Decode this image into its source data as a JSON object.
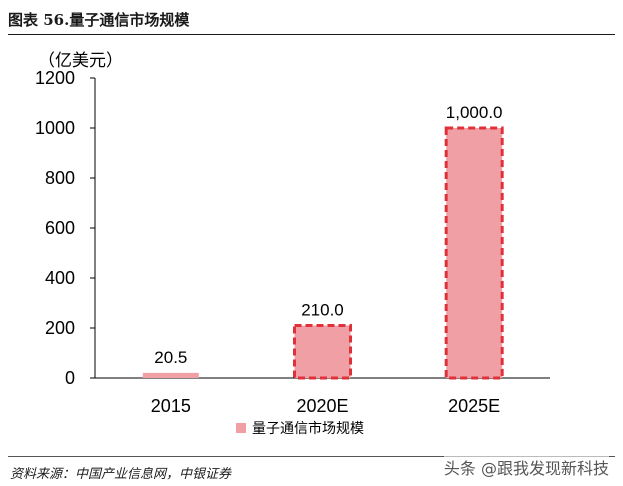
{
  "header": {
    "title": "图表 56.量子通信市场规模"
  },
  "chart_data": {
    "type": "bar",
    "title": "",
    "unit_label": "（亿美元）",
    "categories": [
      "2015",
      "2020E",
      "2025E"
    ],
    "series": [
      {
        "name": "量子通信市场规模",
        "values": [
          20.5,
          210.0,
          1000.0
        ],
        "data_labels": [
          "20.5",
          "210.0",
          "1,000.0"
        ]
      }
    ],
    "ylim": [
      0,
      1200
    ],
    "yticks": [
      0,
      200,
      400,
      600,
      800,
      1000,
      1200
    ],
    "grid": false,
    "legend": "bottom",
    "colors": {
      "bar_fill": "#f0a0a5",
      "bar_dashed_border": "#e0313b",
      "axis": "#000000"
    },
    "bar_styles": [
      "plain",
      "dashed-border",
      "dashed-border"
    ]
  },
  "footer": {
    "source": "资料来源：中国产业信息网，中银证券",
    "watermark": "头条 @跟我发现新科技"
  }
}
